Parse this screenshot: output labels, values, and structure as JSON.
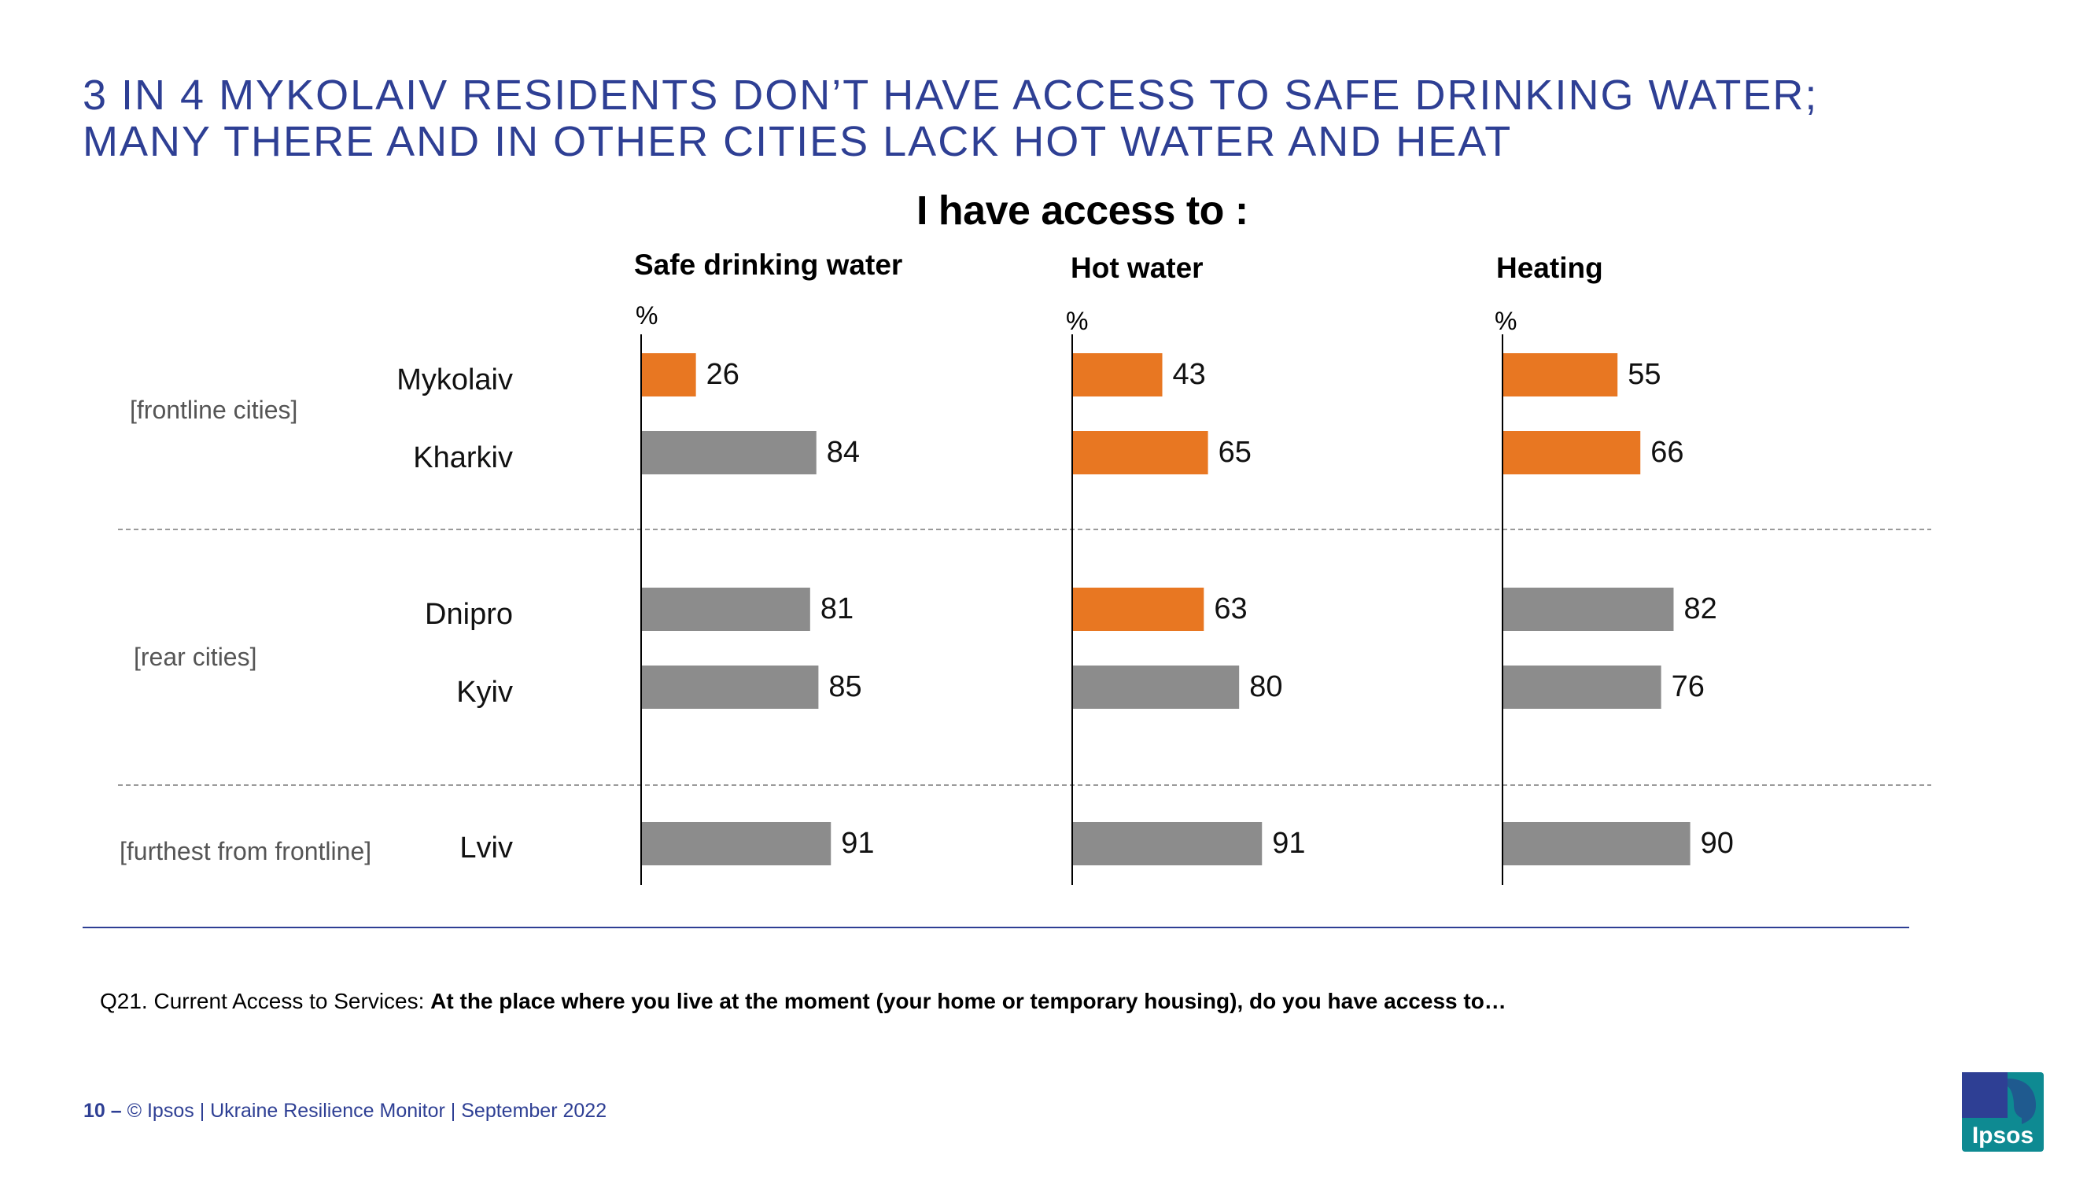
{
  "title": {
    "line1": "3 IN 4 MYKOLAIV RESIDENTS DON’T HAVE ACCESS TO SAFE DRINKING WATER;",
    "line2": "MANY THERE AND IN OTHER CITIES LACK HOT WATER AND HEAT"
  },
  "subtitle": "I have access to :",
  "groups": [
    "[frontline cities]",
    "[rear cities]",
    "[furthest from frontline]"
  ],
  "chart_data": {
    "type": "bar",
    "orientation": "horizontal",
    "unit": "%",
    "categories": [
      "Mykolaiv",
      "Kharkiv",
      "Dnipro",
      "Kyiv",
      "Lviv"
    ],
    "xlim": [
      0,
      100
    ],
    "series": [
      {
        "name": "Safe drinking water",
        "values": [
          26,
          84,
          81,
          85,
          91
        ],
        "highlight": [
          true,
          false,
          false,
          false,
          false
        ]
      },
      {
        "name": "Hot water",
        "values": [
          43,
          65,
          63,
          80,
          91
        ],
        "highlight": [
          true,
          true,
          true,
          false,
          false
        ]
      },
      {
        "name": "Heating",
        "values": [
          55,
          66,
          82,
          76,
          90
        ],
        "highlight": [
          true,
          true,
          false,
          false,
          false
        ]
      }
    ],
    "colors": {
      "highlight": "#e87722",
      "normal": "#8c8c8c"
    }
  },
  "question": {
    "prefix": "Q21. Current Access to Services:",
    "text": "At the place where you live at the moment (your home or temporary housing), do you have access to…"
  },
  "footer": {
    "page": "10 –",
    "text": "© Ipsos | Ukraine Resilience Monitor | September 2022"
  },
  "logo": {
    "text": "Ipsos",
    "color": "#0e8a92"
  },
  "colors": {
    "title": "#2e3f94",
    "divider": "#2e3f94"
  }
}
